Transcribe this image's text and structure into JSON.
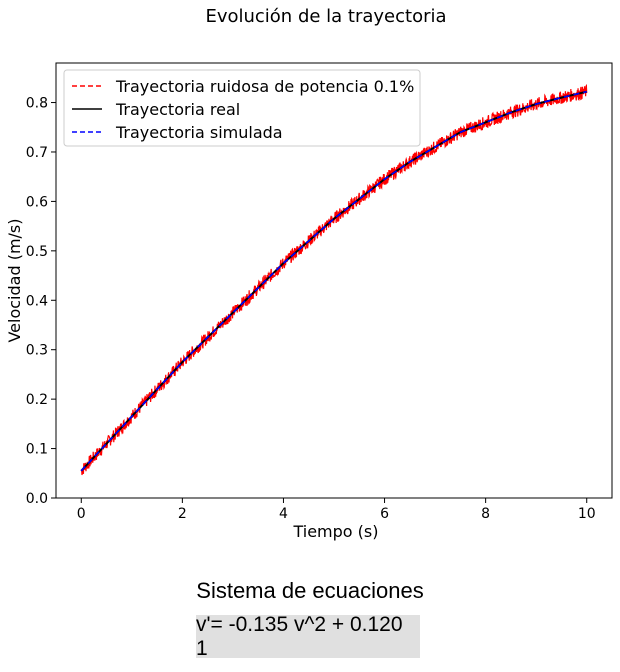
{
  "chart_data": {
    "type": "line",
    "title": "Evolución de la trayectoria",
    "xlabel": "Tiempo (s)",
    "ylabel": "Velocidad (m/s)",
    "xlim": [
      -0.5,
      10.5
    ],
    "ylim": [
      0.0,
      0.88
    ],
    "xticks": [
      0,
      2,
      4,
      6,
      8,
      10
    ],
    "yticks": [
      0.0,
      0.1,
      0.2,
      0.3,
      0.4,
      0.5,
      0.6,
      0.7,
      0.8
    ],
    "grid": false,
    "legend_position": "top-left",
    "x": [
      0,
      0.5,
      1,
      1.5,
      2,
      2.5,
      3,
      3.5,
      4,
      4.5,
      5,
      5.5,
      6,
      6.5,
      7,
      7.5,
      8,
      8.5,
      9,
      9.5,
      10
    ],
    "series": [
      {
        "name": "Trayectoria ruidosa de potencia 0.1%",
        "color": "#ff0000",
        "style": "dashed",
        "values": [
          0.055,
          0.11,
          0.165,
          0.22,
          0.275,
          0.325,
          0.375,
          0.425,
          0.475,
          0.52,
          0.565,
          0.605,
          0.645,
          0.68,
          0.71,
          0.74,
          0.76,
          0.78,
          0.797,
          0.81,
          0.822
        ]
      },
      {
        "name": "Trayectoria real",
        "color": "#000000",
        "style": "solid",
        "values": [
          0.055,
          0.11,
          0.165,
          0.22,
          0.275,
          0.325,
          0.375,
          0.425,
          0.475,
          0.52,
          0.565,
          0.605,
          0.645,
          0.68,
          0.71,
          0.74,
          0.76,
          0.78,
          0.797,
          0.81,
          0.822
        ]
      },
      {
        "name": "Trayectoria simulada",
        "color": "#0000ff",
        "style": "dashed",
        "values": [
          0.055,
          0.11,
          0.165,
          0.22,
          0.275,
          0.325,
          0.375,
          0.425,
          0.475,
          0.52,
          0.565,
          0.605,
          0.645,
          0.68,
          0.71,
          0.74,
          0.76,
          0.78,
          0.797,
          0.81,
          0.822
        ]
      }
    ]
  },
  "equations": {
    "title": "Sistema de ecuaciones",
    "text": "v'= -0.135 v^2 + 0.120 1"
  }
}
